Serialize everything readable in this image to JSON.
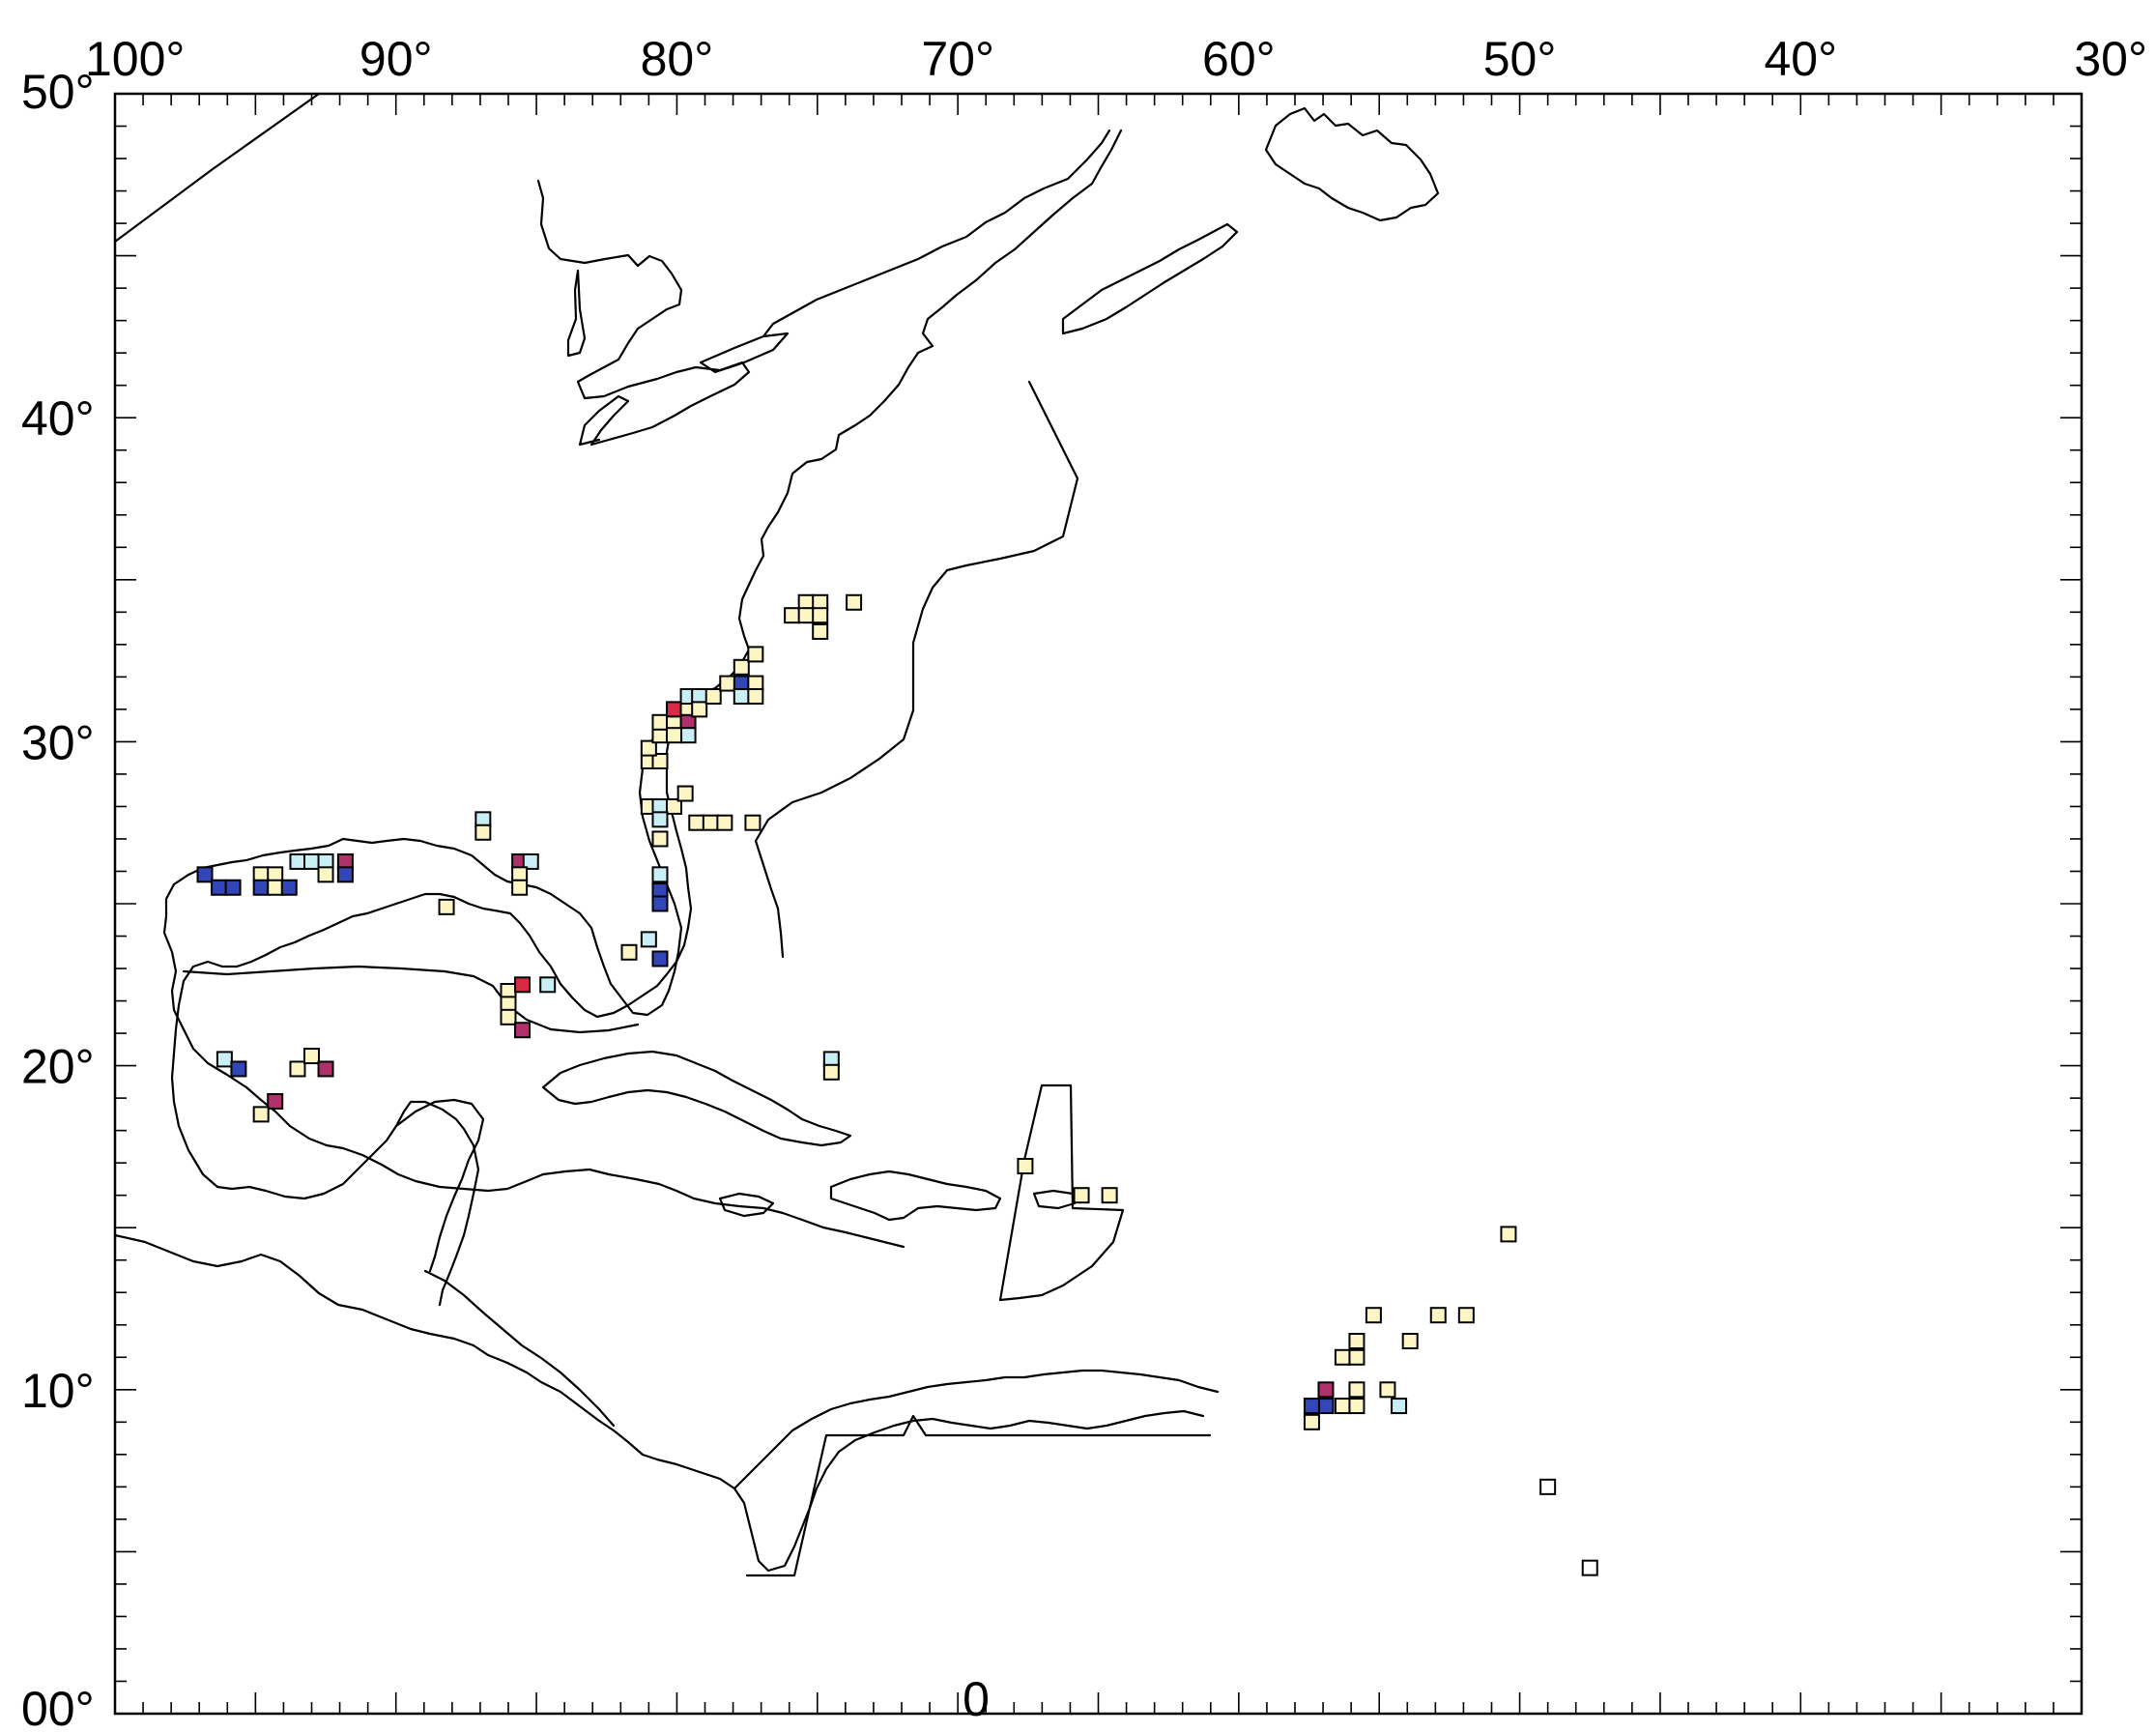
{
  "map": {
    "top_labels": [
      "100°",
      "90°",
      "80°",
      "70°",
      "60°",
      "50°",
      "40°",
      "30°"
    ],
    "top_label_lons": [
      -100,
      -90,
      -80,
      -70,
      -60,
      -50,
      -40,
      -30
    ],
    "left_labels": [
      "50°",
      "40°",
      "30°",
      "20°",
      "10°",
      "00°"
    ],
    "left_label_lats": [
      50,
      40,
      30,
      20,
      10,
      0
    ],
    "bottom_label": "0",
    "lon_range": [
      -100,
      -30
    ],
    "lat_range": [
      0,
      50
    ],
    "colors": {
      "pale_yellow": "#fbf6c4",
      "light_blue": "#c8eef6",
      "blue": "#3346b8",
      "magenta": "#b0306a",
      "red": "#d72b45",
      "white": "#ffffff"
    },
    "cells": [
      {
        "lon": -96.8,
        "lat": 25.9,
        "color": "blue"
      },
      {
        "lon": -96.3,
        "lat": 25.5,
        "color": "blue"
      },
      {
        "lon": -95.8,
        "lat": 25.5,
        "color": "blue"
      },
      {
        "lon": -94.8,
        "lat": 25.9,
        "color": "pale_yellow"
      },
      {
        "lon": -94.3,
        "lat": 25.9,
        "color": "pale_yellow"
      },
      {
        "lon": -94.8,
        "lat": 25.5,
        "color": "blue"
      },
      {
        "lon": -94.3,
        "lat": 25.5,
        "color": "pale_yellow"
      },
      {
        "lon": -93.8,
        "lat": 25.5,
        "color": "blue"
      },
      {
        "lon": -93.5,
        "lat": 26.3,
        "color": "light_blue"
      },
      {
        "lon": -93.0,
        "lat": 26.3,
        "color": "light_blue"
      },
      {
        "lon": -92.5,
        "lat": 26.3,
        "color": "light_blue"
      },
      {
        "lon": -92.5,
        "lat": 25.9,
        "color": "pale_yellow"
      },
      {
        "lon": -91.8,
        "lat": 26.3,
        "color": "magenta"
      },
      {
        "lon": -91.8,
        "lat": 25.9,
        "color": "blue"
      },
      {
        "lon": -86.9,
        "lat": 27.6,
        "color": "light_blue"
      },
      {
        "lon": -86.9,
        "lat": 27.2,
        "color": "pale_yellow"
      },
      {
        "lon": -88.2,
        "lat": 24.9,
        "color": "pale_yellow"
      },
      {
        "lon": -85.6,
        "lat": 26.3,
        "color": "magenta"
      },
      {
        "lon": -85.2,
        "lat": 26.3,
        "color": "light_blue"
      },
      {
        "lon": -85.6,
        "lat": 25.9,
        "color": "pale_yellow"
      },
      {
        "lon": -85.6,
        "lat": 25.5,
        "color": "pale_yellow"
      },
      {
        "lon": -81.7,
        "lat": 23.5,
        "color": "pale_yellow"
      },
      {
        "lon": -81.0,
        "lat": 23.9,
        "color": "light_blue"
      },
      {
        "lon": -80.6,
        "lat": 23.3,
        "color": "blue"
      },
      {
        "lon": -80.6,
        "lat": 25.9,
        "color": "light_blue"
      },
      {
        "lon": -80.6,
        "lat": 25.4,
        "color": "blue"
      },
      {
        "lon": -80.6,
        "lat": 25.0,
        "color": "blue"
      },
      {
        "lon": -86.0,
        "lat": 22.3,
        "color": "pale_yellow"
      },
      {
        "lon": -86.0,
        "lat": 21.9,
        "color": "pale_yellow"
      },
      {
        "lon": -86.0,
        "lat": 21.5,
        "color": "pale_yellow"
      },
      {
        "lon": -85.5,
        "lat": 22.5,
        "color": "red"
      },
      {
        "lon": -84.6,
        "lat": 22.5,
        "color": "light_blue"
      },
      {
        "lon": -85.5,
        "lat": 21.1,
        "color": "magenta"
      },
      {
        "lon": -96.1,
        "lat": 20.2,
        "color": "light_blue"
      },
      {
        "lon": -95.6,
        "lat": 19.9,
        "color": "blue"
      },
      {
        "lon": -93.5,
        "lat": 19.9,
        "color": "pale_yellow"
      },
      {
        "lon": -93.0,
        "lat": 20.3,
        "color": "pale_yellow"
      },
      {
        "lon": -92.5,
        "lat": 19.9,
        "color": "magenta"
      },
      {
        "lon": -94.3,
        "lat": 18.9,
        "color": "magenta"
      },
      {
        "lon": -94.8,
        "lat": 18.5,
        "color": "pale_yellow"
      },
      {
        "lon": -81.0,
        "lat": 29.4,
        "color": "pale_yellow"
      },
      {
        "lon": -80.6,
        "lat": 29.4,
        "color": "pale_yellow"
      },
      {
        "lon": -81.0,
        "lat": 29.8,
        "color": "pale_yellow"
      },
      {
        "lon": -80.6,
        "lat": 30.2,
        "color": "pale_yellow"
      },
      {
        "lon": -80.6,
        "lat": 30.6,
        "color": "pale_yellow"
      },
      {
        "lon": -80.1,
        "lat": 30.6,
        "color": "pale_yellow"
      },
      {
        "lon": -80.1,
        "lat": 31.0,
        "color": "red"
      },
      {
        "lon": -79.6,
        "lat": 31.0,
        "color": "pale_yellow"
      },
      {
        "lon": -79.6,
        "lat": 30.6,
        "color": "magenta"
      },
      {
        "lon": -79.6,
        "lat": 30.2,
        "color": "light_blue"
      },
      {
        "lon": -80.1,
        "lat": 30.2,
        "color": "pale_yellow"
      },
      {
        "lon": -79.6,
        "lat": 31.4,
        "color": "light_blue"
      },
      {
        "lon": -79.2,
        "lat": 31.4,
        "color": "light_blue"
      },
      {
        "lon": -79.2,
        "lat": 31.0,
        "color": "pale_yellow"
      },
      {
        "lon": -78.7,
        "lat": 31.4,
        "color": "pale_yellow"
      },
      {
        "lon": -78.2,
        "lat": 31.8,
        "color": "pale_yellow"
      },
      {
        "lon": -77.7,
        "lat": 31.8,
        "color": "blue"
      },
      {
        "lon": -77.7,
        "lat": 31.4,
        "color": "light_blue"
      },
      {
        "lon": -77.2,
        "lat": 31.8,
        "color": "pale_yellow"
      },
      {
        "lon": -77.2,
        "lat": 31.4,
        "color": "pale_yellow"
      },
      {
        "lon": -77.7,
        "lat": 32.3,
        "color": "pale_yellow"
      },
      {
        "lon": -77.2,
        "lat": 32.7,
        "color": "pale_yellow"
      },
      {
        "lon": -81.0,
        "lat": 28.0,
        "color": "pale_yellow"
      },
      {
        "lon": -80.6,
        "lat": 28.0,
        "color": "light_blue"
      },
      {
        "lon": -80.1,
        "lat": 28.0,
        "color": "pale_yellow"
      },
      {
        "lon": -79.7,
        "lat": 28.4,
        "color": "pale_yellow"
      },
      {
        "lon": -80.6,
        "lat": 27.6,
        "color": "light_blue"
      },
      {
        "lon": -80.6,
        "lat": 27.0,
        "color": "pale_yellow"
      },
      {
        "lon": -79.3,
        "lat": 27.5,
        "color": "pale_yellow"
      },
      {
        "lon": -78.8,
        "lat": 27.5,
        "color": "pale_yellow"
      },
      {
        "lon": -78.3,
        "lat": 27.5,
        "color": "pale_yellow"
      },
      {
        "lon": -77.3,
        "lat": 27.5,
        "color": "pale_yellow"
      },
      {
        "lon": -75.9,
        "lat": 33.9,
        "color": "pale_yellow"
      },
      {
        "lon": -75.4,
        "lat": 34.3,
        "color": "pale_yellow"
      },
      {
        "lon": -74.9,
        "lat": 34.3,
        "color": "pale_yellow"
      },
      {
        "lon": -75.4,
        "lat": 33.9,
        "color": "pale_yellow"
      },
      {
        "lon": -74.9,
        "lat": 33.9,
        "color": "pale_yellow"
      },
      {
        "lon": -74.9,
        "lat": 33.4,
        "color": "pale_yellow"
      },
      {
        "lon": -73.7,
        "lat": 34.3,
        "color": "pale_yellow"
      },
      {
        "lon": -74.5,
        "lat": 20.2,
        "color": "light_blue"
      },
      {
        "lon": -74.5,
        "lat": 19.8,
        "color": "pale_yellow"
      },
      {
        "lon": -67.6,
        "lat": 16.9,
        "color": "pale_yellow"
      },
      {
        "lon": -65.6,
        "lat": 16.0,
        "color": "pale_yellow"
      },
      {
        "lon": -64.6,
        "lat": 16.0,
        "color": "pale_yellow"
      },
      {
        "lon": -56.9,
        "lat": 9.5,
        "color": "blue"
      },
      {
        "lon": -57.4,
        "lat": 9.0,
        "color": "pale_yellow"
      },
      {
        "lon": -57.4,
        "lat": 9.5,
        "color": "blue"
      },
      {
        "lon": -56.9,
        "lat": 10.0,
        "color": "magenta"
      },
      {
        "lon": -56.3,
        "lat": 9.5,
        "color": "pale_yellow"
      },
      {
        "lon": -55.8,
        "lat": 9.5,
        "color": "pale_yellow"
      },
      {
        "lon": -55.8,
        "lat": 10.0,
        "color": "pale_yellow"
      },
      {
        "lon": -56.3,
        "lat": 11.0,
        "color": "pale_yellow"
      },
      {
        "lon": -55.8,
        "lat": 11.0,
        "color": "pale_yellow"
      },
      {
        "lon": -55.8,
        "lat": 11.5,
        "color": "pale_yellow"
      },
      {
        "lon": -55.2,
        "lat": 12.3,
        "color": "pale_yellow"
      },
      {
        "lon": -54.7,
        "lat": 10.0,
        "color": "pale_yellow"
      },
      {
        "lon": -54.3,
        "lat": 9.5,
        "color": "light_blue"
      },
      {
        "lon": -53.9,
        "lat": 11.5,
        "color": "pale_yellow"
      },
      {
        "lon": -52.9,
        "lat": 12.3,
        "color": "pale_yellow"
      },
      {
        "lon": -51.9,
        "lat": 12.3,
        "color": "pale_yellow"
      },
      {
        "lon": -50.4,
        "lat": 14.8,
        "color": "pale_yellow"
      },
      {
        "lon": -49.0,
        "lat": 7.0,
        "color": "white"
      },
      {
        "lon": -47.5,
        "lat": 4.5,
        "color": "white"
      }
    ]
  }
}
